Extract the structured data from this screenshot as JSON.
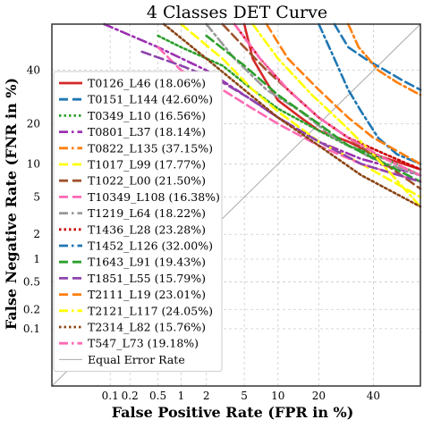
{
  "chart_data": {
    "type": "line",
    "title": "4 Classes DET Curve",
    "xlabel": "False Positive Rate (FPR in %)",
    "ylabel": "False Negative Rate (FNR in %)",
    "scale": "probit (normal deviate)",
    "xlim": [
      0.01,
      60
    ],
    "ylim": [
      0.01,
      60
    ],
    "xticks": [
      0.1,
      0.2,
      0.5,
      1,
      2,
      5,
      10,
      20,
      40
    ],
    "xtick_labels": [
      "0.1",
      "0.2",
      "0.5",
      "1",
      "2",
      "5",
      "10",
      "20",
      "40"
    ],
    "yticks": [
      0.1,
      0.2,
      0.5,
      1,
      2,
      5,
      10,
      20,
      40
    ],
    "ytick_labels": [
      "0.1",
      "0.2",
      "0.5",
      "1",
      "2",
      "5",
      "10",
      "20",
      "40"
    ],
    "grid": true,
    "legend_position": "lower-left",
    "series": [
      {
        "name": "T0126_L46 (18.06%)",
        "color": "#d62728",
        "dash": "solid",
        "points": [
          [
            5,
            60
          ],
          [
            6,
            45
          ],
          [
            8,
            35
          ],
          [
            10,
            28
          ],
          [
            15,
            22
          ],
          [
            20,
            18
          ],
          [
            30,
            15
          ],
          [
            40,
            12
          ],
          [
            60,
            9
          ]
        ]
      },
      {
        "name": "T0151_L144 (42.60%)",
        "color": "#1f77b4",
        "dash": "dashed",
        "points": [
          [
            25,
            60
          ],
          [
            30,
            50
          ],
          [
            38,
            44
          ],
          [
            45,
            40
          ],
          [
            52,
            36
          ],
          [
            60,
            32
          ]
        ]
      },
      {
        "name": "T0349_L10 (16.56%)",
        "color": "#2ca02c",
        "dash": "dotted",
        "points": [
          [
            0.5,
            55
          ],
          [
            1,
            50
          ],
          [
            3,
            42
          ],
          [
            6,
            32
          ],
          [
            10,
            25
          ],
          [
            20,
            18
          ],
          [
            30,
            14
          ],
          [
            45,
            11
          ],
          [
            60,
            8
          ]
        ]
      },
      {
        "name": "T0801_L37 (18.14%)",
        "color": "#9b30b0",
        "dash": "dashdot",
        "points": [
          [
            0.08,
            60
          ],
          [
            0.5,
            50
          ],
          [
            2,
            40
          ],
          [
            5,
            30
          ],
          [
            10,
            22
          ],
          [
            20,
            15
          ],
          [
            35,
            11
          ],
          [
            60,
            8
          ]
        ]
      },
      {
        "name": "T0822_L135 (37.15%)",
        "color": "#ff7f0e",
        "dash": "dashdot",
        "points": [
          [
            30,
            60
          ],
          [
            34,
            50
          ],
          [
            38,
            45
          ],
          [
            42,
            40
          ],
          [
            50,
            35
          ],
          [
            60,
            30
          ]
        ]
      },
      {
        "name": "T1017_L99 (17.77%)",
        "color": "#ffff00",
        "dash": "dashed",
        "points": [
          [
            1,
            60
          ],
          [
            3,
            45
          ],
          [
            6,
            32
          ],
          [
            10,
            24
          ],
          [
            20,
            15
          ],
          [
            35,
            10
          ],
          [
            60,
            5
          ]
        ]
      },
      {
        "name": "T1022_L00 (21.50%)",
        "color": "#a0522d",
        "dash": "dashed",
        "points": [
          [
            3,
            60
          ],
          [
            5,
            50
          ],
          [
            8,
            40
          ],
          [
            12,
            32
          ],
          [
            20,
            22
          ],
          [
            30,
            16
          ],
          [
            45,
            10
          ],
          [
            60,
            6
          ]
        ]
      },
      {
        "name": "T10349_L108 (16.38%)",
        "color": "#ff69b4",
        "dash": "dashed",
        "points": [
          [
            0.5,
            50
          ],
          [
            1,
            40
          ],
          [
            3,
            32
          ],
          [
            6,
            25
          ],
          [
            10,
            20
          ],
          [
            20,
            14
          ],
          [
            35,
            10
          ],
          [
            60,
            7
          ]
        ]
      },
      {
        "name": "T1219_L64 (18.22%)",
        "color": "#999999",
        "dash": "dashdot",
        "points": [
          [
            2,
            60
          ],
          [
            4,
            45
          ],
          [
            8,
            32
          ],
          [
            15,
            24
          ],
          [
            25,
            16
          ],
          [
            40,
            11
          ],
          [
            60,
            8
          ]
        ]
      },
      {
        "name": "T1436_L28 (23.28%)",
        "color": "#cc0000",
        "dash": "dotted",
        "points": [
          [
            4,
            60
          ],
          [
            7,
            45
          ],
          [
            12,
            32
          ],
          [
            20,
            22
          ],
          [
            30,
            16
          ],
          [
            45,
            12
          ],
          [
            60,
            9
          ]
        ]
      },
      {
        "name": "T1452_L126 (32.00%)",
        "color": "#1f77b4",
        "dash": "dashdot",
        "points": [
          [
            20,
            60
          ],
          [
            25,
            45
          ],
          [
            30,
            32
          ],
          [
            35,
            24
          ],
          [
            42,
            16
          ],
          [
            50,
            12
          ],
          [
            60,
            10
          ]
        ]
      },
      {
        "name": "T1643_L91 (19.43%)",
        "color": "#2ca02c",
        "dash": "dashed",
        "points": [
          [
            2,
            55
          ],
          [
            5,
            42
          ],
          [
            10,
            30
          ],
          [
            20,
            20
          ],
          [
            30,
            14
          ],
          [
            45,
            10
          ],
          [
            60,
            7
          ]
        ]
      },
      {
        "name": "T1851_L55 (15.79%)",
        "color": "#8e44ad",
        "dash": "dashed",
        "points": [
          [
            0.3,
            48
          ],
          [
            1,
            42
          ],
          [
            3,
            35
          ],
          [
            6,
            28
          ],
          [
            10,
            22
          ],
          [
            20,
            15
          ],
          [
            35,
            10
          ],
          [
            60,
            7
          ]
        ]
      },
      {
        "name": "T2111_L19 (23.01%)",
        "color": "#ff7f0e",
        "dash": "dashed",
        "points": [
          [
            8,
            60
          ],
          [
            12,
            45
          ],
          [
            20,
            32
          ],
          [
            30,
            22
          ],
          [
            40,
            16
          ],
          [
            60,
            10
          ]
        ]
      },
      {
        "name": "T2121_L117 (24.05%)",
        "color": "#ffff00",
        "dash": "dashdot",
        "points": [
          [
            6,
            60
          ],
          [
            10,
            45
          ],
          [
            18,
            30
          ],
          [
            28,
            20
          ],
          [
            40,
            12
          ],
          [
            60,
            4
          ]
        ]
      },
      {
        "name": "T2314_L82 (15.76%)",
        "color": "#8b4513",
        "dash": "dotted",
        "points": [
          [
            0.6,
            60
          ],
          [
            2,
            45
          ],
          [
            5,
            32
          ],
          [
            10,
            22
          ],
          [
            20,
            14
          ],
          [
            35,
            8
          ],
          [
            60,
            4
          ]
        ]
      },
      {
        "name": "T547_L73 (19.18%)",
        "color": "#ff69b4",
        "dash": "dashdot",
        "points": [
          [
            4,
            60
          ],
          [
            7,
            45
          ],
          [
            12,
            32
          ],
          [
            20,
            22
          ],
          [
            30,
            16
          ],
          [
            45,
            11
          ],
          [
            60,
            8
          ]
        ]
      }
    ],
    "reference_line": {
      "name": "Equal Error Rate",
      "color": "#aaaaaa"
    }
  }
}
